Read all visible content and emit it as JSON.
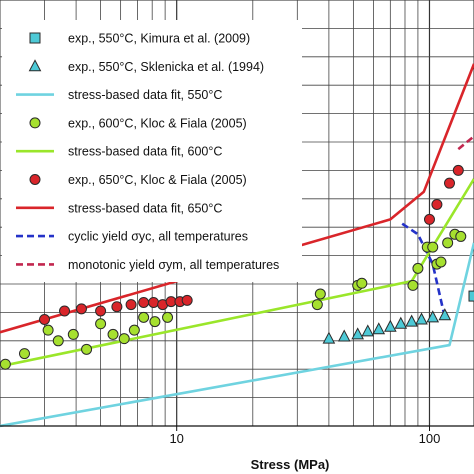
{
  "chart_data": {
    "type": "scatter",
    "title": "",
    "xlabel": "Stress (MPa)",
    "ylabel": "",
    "x_scale": "log",
    "xlim": [
      2,
      150
    ],
    "xticks": [
      {
        "value": 10,
        "label": "10"
      },
      {
        "value": 100,
        "label": "100"
      }
    ],
    "grid": true,
    "legend_position": "top-left",
    "legend": [
      {
        "label": "exp., 550°C, Kimura et al. (2009)",
        "kind": "marker",
        "marker": "square",
        "color": "#4dc9d6"
      },
      {
        "label": "exp., 550°C, Sklenicka et al. (1994)",
        "kind": "marker",
        "marker": "triangle",
        "color": "#4dc9d6"
      },
      {
        "label": "stress-based data fit, 550°C",
        "kind": "line",
        "dash": "solid",
        "color": "#6fd3e0"
      },
      {
        "label": "exp., 600°C, Kloc & Fiala (2005)",
        "kind": "marker",
        "marker": "circle",
        "color": "#a6e02f"
      },
      {
        "label": "stress-based data fit, 600°C",
        "kind": "line",
        "dash": "solid",
        "color": "#9ae62a"
      },
      {
        "label": "exp., 650°C, Kloc & Fiala (2005)",
        "kind": "marker",
        "marker": "circle",
        "color": "#d9252a"
      },
      {
        "label": "stress-based data fit, 650°C",
        "kind": "line",
        "dash": "solid",
        "color": "#d9252a"
      },
      {
        "label": "cyclic yield σyc, all temperatures",
        "kind": "line",
        "dash": "dashed",
        "color": "#2432c8"
      },
      {
        "label": "monotonic yield σym, all temperatures",
        "kind": "line",
        "dash": "dashed",
        "color": "#c2274f"
      }
    ],
    "series": [
      {
        "name": "exp., 550°C, Kimura et al. (2009)",
        "kind": "scatter",
        "marker": "square",
        "color": "#4dc9d6",
        "points": [
          [
            150,
            0.305
          ]
        ]
      },
      {
        "name": "exp., 550°C, Sklenicka et al. (1994)",
        "kind": "scatter",
        "marker": "triangle",
        "color": "#4dc9d6",
        "points": [
          [
            40,
            0.205
          ],
          [
            46,
            0.21
          ],
          [
            52,
            0.215
          ],
          [
            57,
            0.222
          ],
          [
            63,
            0.227
          ],
          [
            70,
            0.233
          ],
          [
            77,
            0.24
          ],
          [
            85,
            0.245
          ],
          [
            93,
            0.25
          ],
          [
            103,
            0.255
          ],
          [
            115,
            0.26
          ]
        ]
      },
      {
        "name": "stress-based data fit, 550°C",
        "kind": "line",
        "color": "#6fd3e0",
        "points": [
          [
            2,
            0.0
          ],
          [
            120,
            0.19
          ],
          [
            150,
            0.43
          ]
        ]
      },
      {
        "name": "exp., 600°C, Kloc & Fiala (2005)",
        "kind": "scatter",
        "marker": "circle",
        "color": "#a6e02f",
        "points": [
          [
            2.1,
            0.145
          ],
          [
            2.5,
            0.17
          ],
          [
            3.1,
            0.225
          ],
          [
            3.4,
            0.2
          ],
          [
            3.9,
            0.215
          ],
          [
            4.4,
            0.18
          ],
          [
            5.0,
            0.24
          ],
          [
            5.6,
            0.215
          ],
          [
            6.2,
            0.205
          ],
          [
            6.8,
            0.225
          ],
          [
            7.4,
            0.255
          ],
          [
            8.2,
            0.245
          ],
          [
            9.2,
            0.255
          ],
          [
            36,
            0.285
          ],
          [
            37,
            0.31
          ],
          [
            52,
            0.33
          ],
          [
            54,
            0.335
          ],
          [
            86,
            0.33
          ],
          [
            90,
            0.37
          ],
          [
            98,
            0.42
          ],
          [
            103,
            0.42
          ],
          [
            107,
            0.38
          ],
          [
            111,
            0.385
          ],
          [
            118,
            0.43
          ],
          [
            126,
            0.45
          ],
          [
            133,
            0.445
          ]
        ]
      },
      {
        "name": "stress-based data fit, 600°C",
        "kind": "line",
        "color": "#9ae62a",
        "points": [
          [
            2,
            0.14
          ],
          [
            85,
            0.34
          ],
          [
            150,
            0.58
          ]
        ]
      },
      {
        "name": "exp., 650°C, Kloc & Fiala (2005)",
        "kind": "scatter",
        "marker": "circle",
        "color": "#d9252a",
        "points": [
          [
            3.0,
            0.25
          ],
          [
            3.6,
            0.27
          ],
          [
            4.2,
            0.275
          ],
          [
            5.0,
            0.27
          ],
          [
            5.8,
            0.28
          ],
          [
            6.6,
            0.285
          ],
          [
            7.4,
            0.29
          ],
          [
            8.1,
            0.29
          ],
          [
            8.8,
            0.285
          ],
          [
            9.5,
            0.292
          ],
          [
            10.3,
            0.292
          ],
          [
            11.0,
            0.295
          ],
          [
            100,
            0.485
          ],
          [
            107,
            0.52
          ],
          [
            120,
            0.57
          ],
          [
            130,
            0.6
          ]
        ]
      },
      {
        "name": "stress-based data fit, 650°C",
        "kind": "line",
        "color": "#d9252a",
        "points": [
          [
            2,
            0.22
          ],
          [
            70,
            0.485
          ],
          [
            95,
            0.55
          ],
          [
            150,
            0.85
          ]
        ]
      },
      {
        "name": "cyclic yield σyc, all temperatures",
        "kind": "line",
        "dash": "dashed",
        "color": "#2432c8",
        "points": [
          [
            78,
            0.475
          ],
          [
            90,
            0.45
          ],
          [
            103,
            0.38
          ],
          [
            115,
            0.255
          ]
        ]
      },
      {
        "name": "monotonic yield σym, all temperatures",
        "kind": "line",
        "dash": "dashed",
        "color": "#c2274f",
        "points": [
          [
            130,
            0.65
          ],
          [
            150,
            0.68
          ]
        ]
      }
    ]
  }
}
